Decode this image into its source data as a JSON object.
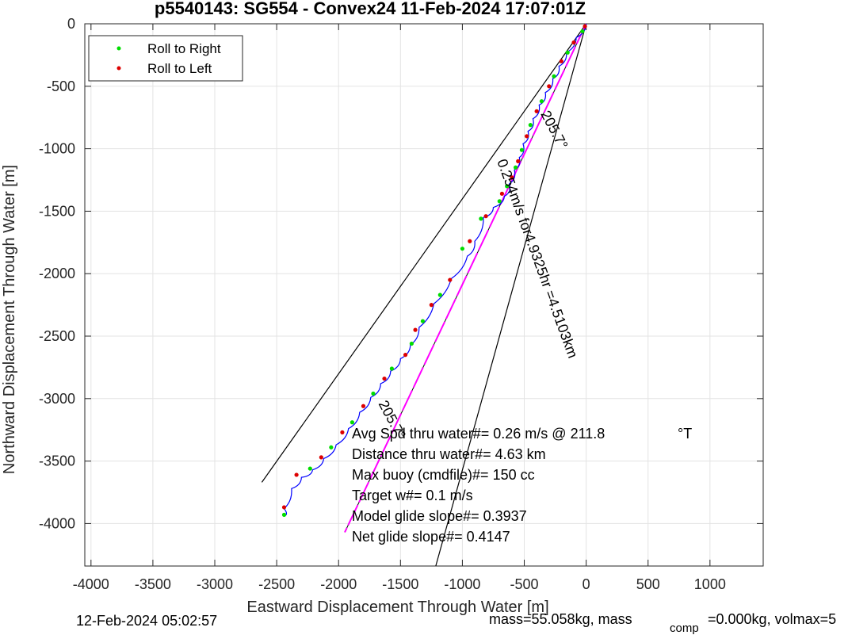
{
  "chart_data": {
    "type": "line",
    "title": "p5540143: SG554 - Convex24 11-Feb-2024 17:07:01Z",
    "xlabel": "Eastward Displacement Through Water [m]",
    "ylabel": "Northward Displacement Through Water [m]",
    "xlim": [
      -4050,
      1430
    ],
    "ylim": [
      -4340,
      0
    ],
    "xticks": [
      -4000,
      -3500,
      -3000,
      -2500,
      -2000,
      -1500,
      -1000,
      -500,
      0,
      500,
      1000
    ],
    "yticks": [
      0,
      -500,
      -1000,
      -1500,
      -2000,
      -2500,
      -3000,
      -3500,
      -4000
    ],
    "grid": true,
    "legend_position": "top-left",
    "legend": [
      {
        "name": "Roll to Right",
        "color": "#00dd00"
      },
      {
        "name": "Roll to Left",
        "color": "#dd0000"
      }
    ],
    "track_color": "#0000ff",
    "heading_line_color": "#ff00ff",
    "series": [
      {
        "name": "Track",
        "points": [
          [
            0,
            0
          ],
          [
            -80,
            -110
          ],
          [
            -160,
            -230
          ],
          [
            -220,
            -340
          ],
          [
            -270,
            -440
          ],
          [
            -330,
            -550
          ],
          [
            -380,
            -650
          ],
          [
            -430,
            -760
          ],
          [
            -470,
            -860
          ],
          [
            -510,
            -960
          ],
          [
            -540,
            -1070
          ],
          [
            -580,
            -1170
          ],
          [
            -620,
            -1280
          ],
          [
            -660,
            -1380
          ],
          [
            -750,
            -1470
          ],
          [
            -830,
            -1550
          ],
          [
            -900,
            -1740
          ],
          [
            -960,
            -1860
          ],
          [
            -1090,
            -2040
          ],
          [
            -1230,
            -2240
          ],
          [
            -1350,
            -2430
          ],
          [
            -1420,
            -2570
          ],
          [
            -1500,
            -2680
          ],
          [
            -1580,
            -2780
          ],
          [
            -1660,
            -2880
          ],
          [
            -1740,
            -2990
          ],
          [
            -1830,
            -3110
          ],
          [
            -1920,
            -3240
          ],
          [
            -2020,
            -3370
          ],
          [
            -2120,
            -3480
          ],
          [
            -2210,
            -3570
          ],
          [
            -2300,
            -3630
          ],
          [
            -2380,
            -3720
          ],
          [
            -2440,
            -3880
          ],
          [
            -2440,
            -3940
          ]
        ]
      }
    ],
    "roll_right": [
      [
        -30,
        -60
      ],
      [
        -150,
        -230
      ],
      [
        -260,
        -420
      ],
      [
        -360,
        -620
      ],
      [
        -450,
        -810
      ],
      [
        -520,
        -1010
      ],
      [
        -570,
        -1150
      ],
      [
        -640,
        -1300
      ],
      [
        -700,
        -1420
      ],
      [
        -850,
        -1560
      ],
      [
        -1000,
        -1800
      ],
      [
        -1180,
        -2170
      ],
      [
        -1320,
        -2380
      ],
      [
        -1410,
        -2560
      ],
      [
        -1570,
        -2760
      ],
      [
        -1720,
        -2960
      ],
      [
        -1890,
        -3190
      ],
      [
        -2060,
        -3390
      ],
      [
        -2230,
        -3560
      ],
      [
        -2440,
        -3930
      ]
    ],
    "roll_left": [
      [
        -10,
        -20
      ],
      [
        -100,
        -150
      ],
      [
        -200,
        -300
      ],
      [
        -300,
        -500
      ],
      [
        -400,
        -700
      ],
      [
        -480,
        -900
      ],
      [
        -550,
        -1100
      ],
      [
        -600,
        -1230
      ],
      [
        -680,
        -1360
      ],
      [
        -810,
        -1540
      ],
      [
        -940,
        -1740
      ],
      [
        -1100,
        -2050
      ],
      [
        -1250,
        -2250
      ],
      [
        -1380,
        -2450
      ],
      [
        -1460,
        -2650
      ],
      [
        -1630,
        -2840
      ],
      [
        -1800,
        -3060
      ],
      [
        -1970,
        -3270
      ],
      [
        -2140,
        -3470
      ],
      [
        -2340,
        -3610
      ],
      [
        -2440,
        -3870
      ]
    ],
    "wedge_lines": [
      {
        "from": [
          0,
          0
        ],
        "to": [
          -2620,
          -3670
        ]
      },
      {
        "from": [
          0,
          0
        ],
        "to": [
          -1215,
          -4340
        ]
      }
    ],
    "heading_line": {
      "from": [
        0,
        0
      ],
      "to": [
        -1950,
        -4070
      ]
    },
    "line_labels": [
      {
        "text": "205.7°",
        "at": [
          -1680,
          -3040
        ],
        "angle": 62
      },
      {
        "text": "205.7°",
        "at": [
          -370,
          -720
        ],
        "angle": 62
      },
      {
        "text": "0.254m/s for4.9325hr =4.5103km",
        "at": [
          -720,
          -1100
        ],
        "angle": 70
      }
    ],
    "annotations": [
      "Avg Spd thru water#=  0.26 m/s @ 211.8",
      "Distance thru water#=  4.63 km",
      "Max buoy (cmdfile)#= 150 cc",
      "Target w#= 0.1 m/s",
      "Model glide slope#= 0.3937",
      "Net glide slope#= 0.4147"
    ],
    "annotation_unit": "°T"
  },
  "footer": {
    "date": "12-Feb-2024 05:02:57",
    "mass": "mass=55.058kg, mass",
    "mass_sub": "comp",
    "mass_rest": "=0.000kg, volmax=5"
  }
}
